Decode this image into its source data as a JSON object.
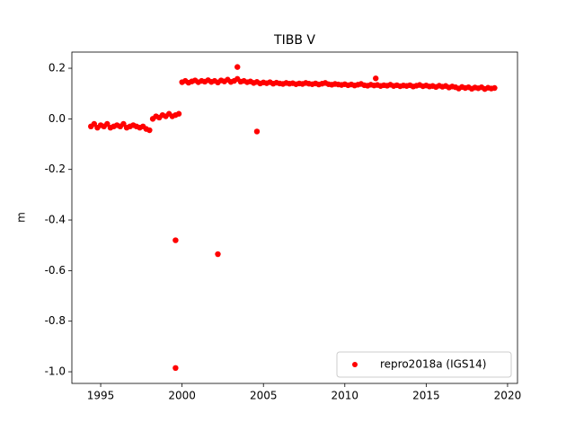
{
  "chart_data": {
    "type": "scatter",
    "title": "TIBB V",
    "y_label": "m",
    "x": [
      1994.4,
      1994.6,
      1994.8,
      1995.0,
      1995.2,
      1995.4,
      1995.6,
      1995.8,
      1996.0,
      1996.2,
      1996.4,
      1996.6,
      1996.8,
      1997.0,
      1997.2,
      1997.4,
      1997.6,
      1997.8,
      1998.0,
      1998.2,
      1998.4,
      1998.6,
      1998.8,
      1999.0,
      1999.2,
      1999.4,
      1999.6,
      1999.8,
      2000.0,
      2000.2,
      2000.4,
      2000.6,
      2000.8,
      2001.0,
      2001.2,
      2001.4,
      2001.6,
      2001.8,
      2002.0,
      2002.2,
      2002.4,
      2002.6,
      2002.8,
      2003.0,
      2003.2,
      2003.4,
      2003.6,
      2003.8,
      2004.0,
      2004.2,
      2004.4,
      2004.6,
      2004.8,
      2005.0,
      2005.2,
      2005.4,
      2005.6,
      2005.8,
      2006.0,
      2006.2,
      2006.4,
      2006.6,
      2006.8,
      2007.0,
      2007.2,
      2007.4,
      2007.6,
      2007.8,
      2008.0,
      2008.2,
      2008.4,
      2008.6,
      2008.8,
      2009.0,
      2009.2,
      2009.4,
      2009.6,
      2009.8,
      2010.0,
      2010.2,
      2010.4,
      2010.6,
      2010.8,
      2011.0,
      2011.2,
      2011.4,
      2011.6,
      2011.8,
      2012.0,
      2012.2,
      2012.4,
      2012.6,
      2012.8,
      2013.0,
      2013.2,
      2013.4,
      2013.6,
      2013.8,
      2014.0,
      2014.2,
      2014.4,
      2014.6,
      2014.8,
      2015.0,
      2015.2,
      2015.4,
      2015.6,
      2015.8,
      2016.0,
      2016.2,
      2016.4,
      2016.6,
      2016.8,
      2017.0,
      2017.2,
      2017.4,
      2017.6,
      2017.8,
      2018.0,
      2018.2,
      2018.4,
      2018.6,
      2018.8,
      2019.0,
      2019.2,
      1999.6,
      1999.6,
      2002.2,
      2003.4,
      2004.6,
      2011.9
    ],
    "series": [
      {
        "name": "repro2018a (IGS14)",
        "color": "#ff0000",
        "values": [
          -0.03,
          -0.02,
          -0.035,
          -0.025,
          -0.03,
          -0.02,
          -0.035,
          -0.03,
          -0.025,
          -0.03,
          -0.02,
          -0.035,
          -0.03,
          -0.025,
          -0.03,
          -0.035,
          -0.03,
          -0.04,
          -0.045,
          0.0,
          0.01,
          0.005,
          0.015,
          0.01,
          0.02,
          0.01,
          0.015,
          0.02,
          0.145,
          0.15,
          0.143,
          0.148,
          0.152,
          0.145,
          0.15,
          0.147,
          0.153,
          0.146,
          0.15,
          0.144,
          0.152,
          0.148,
          0.155,
          0.146,
          0.15,
          0.158,
          0.147,
          0.15,
          0.145,
          0.148,
          0.142,
          0.146,
          0.14,
          0.144,
          0.141,
          0.145,
          0.139,
          0.143,
          0.14,
          0.138,
          0.142,
          0.139,
          0.141,
          0.137,
          0.14,
          0.138,
          0.142,
          0.139,
          0.137,
          0.14,
          0.136,
          0.139,
          0.142,
          0.137,
          0.135,
          0.138,
          0.136,
          0.134,
          0.137,
          0.133,
          0.136,
          0.132,
          0.135,
          0.138,
          0.133,
          0.131,
          0.135,
          0.132,
          0.134,
          0.13,
          0.133,
          0.131,
          0.135,
          0.13,
          0.133,
          0.129,
          0.132,
          0.13,
          0.133,
          0.128,
          0.131,
          0.134,
          0.129,
          0.132,
          0.128,
          0.13,
          0.126,
          0.131,
          0.127,
          0.13,
          0.124,
          0.128,
          0.125,
          0.12,
          0.126,
          0.122,
          0.125,
          0.119,
          0.124,
          0.121,
          0.125,
          0.118,
          0.123,
          0.12,
          0.122,
          -0.48,
          -0.985,
          -0.535,
          0.205,
          -0.05,
          0.16
        ]
      }
    ],
    "xlim": [
      1993.23,
      2020.61
    ],
    "ylim": [
      -1.046,
      0.264
    ],
    "xticks": [
      1995,
      2000,
      2005,
      2010,
      2015,
      2020
    ],
    "yticks": [
      {
        "value": -1.0,
        "label": "-1.0"
      },
      -0.8,
      -0.6,
      -0.4,
      -0.2,
      {
        "value": 0.0,
        "label": "0.0"
      },
      0.2
    ],
    "legend": "lower right"
  }
}
